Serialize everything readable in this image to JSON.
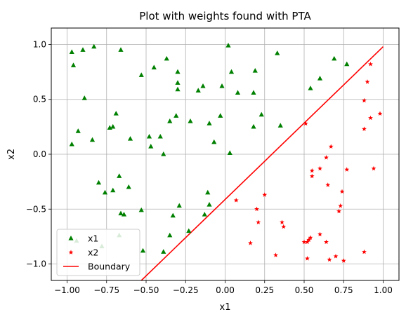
{
  "chart_data": {
    "type": "scatter",
    "title": "Plot with weights found with PTA",
    "xlabel": "x1",
    "ylabel": "x2",
    "xlim": [
      -1.1,
      1.1
    ],
    "ylim": [
      -1.15,
      1.15
    ],
    "xticks": [
      -1.0,
      -0.75,
      -0.5,
      -0.25,
      0.0,
      0.25,
      0.5,
      0.75,
      1.0
    ],
    "xtick_labels": [
      "−1.00",
      "−0.75",
      "−0.50",
      "−0.25",
      "0.00",
      "0.25",
      "0.50",
      "0.75",
      "1.00"
    ],
    "yticks": [
      -1.0,
      -0.5,
      0.0,
      0.5,
      1.0
    ],
    "ytick_labels": [
      "−1.0",
      "−0.5",
      "0.0",
      "0.5",
      "1.0"
    ],
    "grid": true,
    "legend_position": "lower-left",
    "series": [
      {
        "name": "x1",
        "marker": "triangle",
        "color": "#008000",
        "points": [
          [
            -0.97,
            0.93
          ],
          [
            -0.96,
            0.81
          ],
          [
            -0.9,
            0.95
          ],
          [
            -0.83,
            0.98
          ],
          [
            -0.66,
            0.95
          ],
          [
            -0.53,
            0.72
          ],
          [
            -0.45,
            0.79
          ],
          [
            -0.37,
            0.87
          ],
          [
            -0.3,
            0.75
          ],
          [
            -0.3,
            0.65
          ],
          [
            -0.3,
            0.59
          ],
          [
            0.02,
            0.99
          ],
          [
            0.04,
            0.75
          ],
          [
            0.19,
            0.76
          ],
          [
            0.33,
            0.92
          ],
          [
            0.69,
            0.87
          ],
          [
            0.77,
            0.82
          ],
          [
            0.6,
            0.69
          ],
          [
            0.54,
            0.6
          ],
          [
            0.08,
            0.56
          ],
          [
            0.18,
            0.56
          ],
          [
            -0.02,
            0.62
          ],
          [
            -0.14,
            0.62
          ],
          [
            -0.17,
            0.58
          ],
          [
            -0.89,
            0.51
          ],
          [
            -0.97,
            0.09
          ],
          [
            -0.93,
            0.21
          ],
          [
            -0.84,
            0.13
          ],
          [
            -0.69,
            0.37
          ],
          [
            -0.71,
            0.25
          ],
          [
            -0.73,
            0.24
          ],
          [
            -0.6,
            0.14
          ],
          [
            -0.48,
            0.16
          ],
          [
            -0.47,
            0.07
          ],
          [
            -0.41,
            0.16
          ],
          [
            -0.35,
            0.3
          ],
          [
            -0.31,
            0.35
          ],
          [
            -0.22,
            0.3
          ],
          [
            -0.1,
            0.28
          ],
          [
            -0.03,
            0.35
          ],
          [
            -0.07,
            0.11
          ],
          [
            0.03,
            0.01
          ],
          [
            -0.39,
            0.0
          ],
          [
            0.18,
            0.25
          ],
          [
            0.23,
            0.36
          ],
          [
            0.35,
            0.26
          ],
          [
            -0.8,
            -0.26
          ],
          [
            -0.76,
            -0.35
          ],
          [
            -0.71,
            -0.33
          ],
          [
            -0.67,
            -0.2
          ],
          [
            -0.61,
            -0.3
          ],
          [
            -0.64,
            -0.55
          ],
          [
            -0.66,
            -0.54
          ],
          [
            -0.53,
            -0.51
          ],
          [
            -0.52,
            -0.88
          ],
          [
            -0.39,
            -0.89
          ],
          [
            -0.35,
            -0.74
          ],
          [
            -0.33,
            -0.56
          ],
          [
            -0.29,
            -0.47
          ],
          [
            -0.23,
            -0.7
          ],
          [
            -0.13,
            -0.55
          ],
          [
            -0.11,
            -0.35
          ],
          [
            -0.1,
            -0.46
          ],
          [
            -0.67,
            -0.74
          ],
          [
            -0.78,
            -0.84
          ],
          [
            -0.94,
            -0.79
          ]
        ]
      },
      {
        "name": "x2",
        "marker": "star",
        "color": "#ff0000",
        "points": [
          [
            0.51,
            0.28
          ],
          [
            0.67,
            0.07
          ],
          [
            0.88,
            0.49
          ],
          [
            0.9,
            0.66
          ],
          [
            0.92,
            0.82
          ],
          [
            0.92,
            0.33
          ],
          [
            0.88,
            0.23
          ],
          [
            0.98,
            0.37
          ],
          [
            0.55,
            -0.15
          ],
          [
            0.55,
            -0.2
          ],
          [
            0.6,
            -0.13
          ],
          [
            0.64,
            -0.03
          ],
          [
            0.65,
            -0.28
          ],
          [
            0.74,
            -0.34
          ],
          [
            0.77,
            -0.14
          ],
          [
            0.94,
            -0.13
          ],
          [
            0.73,
            -0.47
          ],
          [
            0.72,
            -0.52
          ],
          [
            0.25,
            -0.37
          ],
          [
            0.2,
            -0.5
          ],
          [
            0.07,
            -0.42
          ],
          [
            0.21,
            -0.62
          ],
          [
            0.36,
            -0.62
          ],
          [
            0.37,
            -0.66
          ],
          [
            0.16,
            -0.81
          ],
          [
            0.32,
            -0.92
          ],
          [
            0.52,
            -0.8
          ],
          [
            0.53,
            -0.78
          ],
          [
            0.54,
            -0.76
          ],
          [
            0.5,
            -0.8
          ],
          [
            0.52,
            -0.95
          ],
          [
            0.6,
            -0.73
          ],
          [
            0.64,
            -0.8
          ],
          [
            0.66,
            -0.96
          ],
          [
            0.7,
            -0.93
          ],
          [
            0.75,
            -0.97
          ],
          [
            0.88,
            -0.89
          ]
        ]
      },
      {
        "name": "Boundary",
        "marker": "line",
        "color": "#ff0000",
        "points": [
          [
            -0.53,
            -1.15
          ],
          [
            1.0,
            0.98
          ]
        ]
      }
    ]
  }
}
